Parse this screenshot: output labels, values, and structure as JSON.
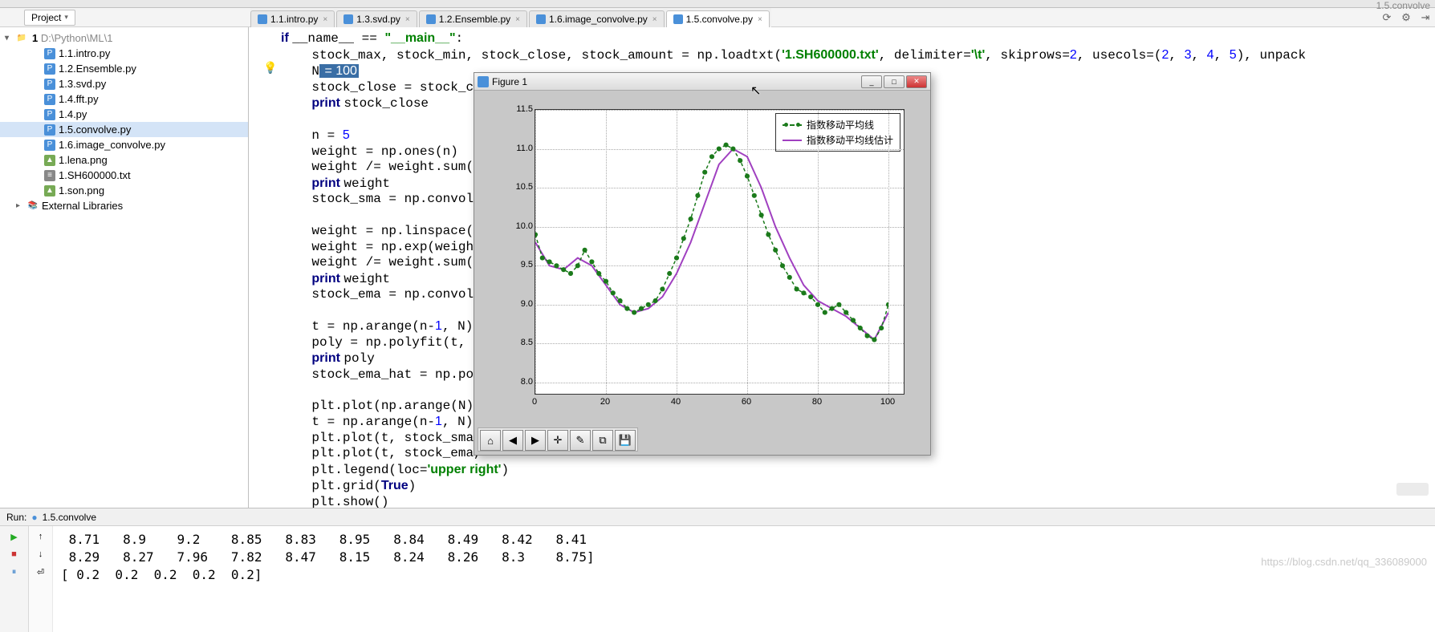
{
  "title_bar_hint": "1.5.convolve.py",
  "top_right_label": "1.5.convolve",
  "project_dropdown": "Project",
  "tabs": [
    {
      "label": "1.1.intro.py",
      "active": false
    },
    {
      "label": "1.3.svd.py",
      "active": false
    },
    {
      "label": "1.2.Ensemble.py",
      "active": false
    },
    {
      "label": "1.6.image_convolve.py",
      "active": false
    },
    {
      "label": "1.5.convolve.py",
      "active": true
    }
  ],
  "tree": {
    "root": "D:\\Python\\ML\\1",
    "children": [
      {
        "name": "1.1.intro.py",
        "type": "py"
      },
      {
        "name": "1.2.Ensemble.py",
        "type": "py"
      },
      {
        "name": "1.3.svd.py",
        "type": "py"
      },
      {
        "name": "1.4.fft.py",
        "type": "py"
      },
      {
        "name": "1.4.py",
        "type": "py"
      },
      {
        "name": "1.5.convolve.py",
        "type": "py",
        "selected": true
      },
      {
        "name": "1.6.image_convolve.py",
        "type": "py"
      },
      {
        "name": "1.lena.png",
        "type": "img"
      },
      {
        "name": "1.SH600000.txt",
        "type": "txt"
      },
      {
        "name": "1.son.png",
        "type": "img"
      }
    ],
    "libs": "External Libraries"
  },
  "code_lines": [
    {
      "indent": 1,
      "segs": [
        {
          "t": "if ",
          "c": "kw"
        },
        {
          "t": "__name__ == "
        },
        {
          "t": "\"__main__\"",
          "c": "str"
        },
        {
          "t": ":"
        }
      ]
    },
    {
      "indent": 2,
      "segs": [
        {
          "t": "stock_max, stock_min, stock_close, stock_amount = np.loadtxt("
        },
        {
          "t": "'1.SH600000.txt'",
          "c": "str"
        },
        {
          "t": ", delimiter="
        },
        {
          "t": "'\\t'",
          "c": "str"
        },
        {
          "t": ", skiprows="
        },
        {
          "t": "2",
          "c": "num"
        },
        {
          "t": ", usecols=("
        },
        {
          "t": "2",
          "c": "num"
        },
        {
          "t": ", "
        },
        {
          "t": "3",
          "c": "num"
        },
        {
          "t": ", "
        },
        {
          "t": "4",
          "c": "num"
        },
        {
          "t": ", "
        },
        {
          "t": "5",
          "c": "num"
        },
        {
          "t": "), unpack"
        }
      ]
    },
    {
      "indent": 2,
      "segs": [
        {
          "t": "N"
        },
        {
          "t": " = 100",
          "c": "sel"
        }
      ]
    },
    {
      "indent": 2,
      "segs": [
        {
          "t": "stock_close = stock_clo"
        }
      ]
    },
    {
      "indent": 2,
      "segs": [
        {
          "t": "print ",
          "c": "kw"
        },
        {
          "t": "stock_close"
        }
      ]
    },
    {
      "indent": 2,
      "segs": [
        {
          "t": ""
        }
      ]
    },
    {
      "indent": 2,
      "segs": [
        {
          "t": "n = "
        },
        {
          "t": "5",
          "c": "num"
        }
      ]
    },
    {
      "indent": 2,
      "segs": [
        {
          "t": "weight = np.ones(n)"
        }
      ]
    },
    {
      "indent": 2,
      "segs": [
        {
          "t": "weight /= weight.sum()"
        }
      ]
    },
    {
      "indent": 2,
      "segs": [
        {
          "t": "print ",
          "c": "kw"
        },
        {
          "t": "weight"
        }
      ]
    },
    {
      "indent": 2,
      "segs": [
        {
          "t": "stock_sma = np.convolve"
        }
      ]
    },
    {
      "indent": 2,
      "segs": [
        {
          "t": ""
        }
      ]
    },
    {
      "indent": 2,
      "segs": [
        {
          "t": "weight = np.linspace("
        },
        {
          "t": "1",
          "c": "num"
        },
        {
          "t": ","
        }
      ]
    },
    {
      "indent": 2,
      "segs": [
        {
          "t": "weight = np.exp(weight)"
        }
      ]
    },
    {
      "indent": 2,
      "segs": [
        {
          "t": "weight /= weight.sum()"
        }
      ]
    },
    {
      "indent": 2,
      "segs": [
        {
          "t": "print ",
          "c": "kw"
        },
        {
          "t": "weight"
        }
      ]
    },
    {
      "indent": 2,
      "segs": [
        {
          "t": "stock_ema = np.convolve"
        }
      ]
    },
    {
      "indent": 2,
      "segs": [
        {
          "t": ""
        }
      ]
    },
    {
      "indent": 2,
      "segs": [
        {
          "t": "t = np.arange(n-"
        },
        {
          "t": "1",
          "c": "num"
        },
        {
          "t": ", N)"
        }
      ]
    },
    {
      "indent": 2,
      "segs": [
        {
          "t": "poly = np.polyfit(t, st"
        }
      ]
    },
    {
      "indent": 2,
      "segs": [
        {
          "t": "print ",
          "c": "kw"
        },
        {
          "t": "poly"
        }
      ]
    },
    {
      "indent": 2,
      "segs": [
        {
          "t": "stock_ema_hat = np.poly"
        }
      ]
    },
    {
      "indent": 2,
      "segs": [
        {
          "t": ""
        }
      ]
    },
    {
      "indent": 2,
      "segs": [
        {
          "t": "plt.plot(np.arange(N),"
        }
      ]
    },
    {
      "indent": 2,
      "segs": [
        {
          "t": "t = np.arange(n-"
        },
        {
          "t": "1",
          "c": "num"
        },
        {
          "t": ", N)"
        }
      ]
    },
    {
      "indent": 2,
      "segs": [
        {
          "t": "plt.plot(t, stock_sma,"
        }
      ]
    },
    {
      "indent": 2,
      "segs": [
        {
          "t": "plt.plot(t, stock_ema,"
        }
      ]
    },
    {
      "indent": 2,
      "segs": [
        {
          "t": "plt.legend(loc="
        },
        {
          "t": "'upper right'",
          "c": "str"
        },
        {
          "t": ")"
        }
      ]
    },
    {
      "indent": 2,
      "segs": [
        {
          "t": "plt.grid("
        },
        {
          "t": "True",
          "c": "kw"
        },
        {
          "t": ")"
        }
      ]
    },
    {
      "indent": 2,
      "segs": [
        {
          "t": "plt.show()"
        }
      ]
    }
  ],
  "figure": {
    "title": "Figure 1",
    "chart": {
      "type": "line",
      "xlim": [
        0,
        100
      ],
      "xtick_step": 20,
      "ylim": [
        8.0,
        11.5
      ],
      "ytick_step": 0.5,
      "background_color": "#ffffff",
      "grid_color": "#bbbbbb",
      "series_ema": {
        "color": "#1b7a1b",
        "style": "dashed-dot",
        "marker": "o",
        "marker_size": 4,
        "x": [
          0,
          2,
          4,
          6,
          8,
          10,
          12,
          14,
          16,
          18,
          20,
          22,
          24,
          26,
          28,
          30,
          32,
          34,
          36,
          38,
          40,
          42,
          44,
          46,
          48,
          50,
          52,
          54,
          56,
          58,
          60,
          62,
          64,
          66,
          68,
          70,
          72,
          74,
          76,
          78,
          80,
          82,
          84,
          86,
          88,
          90,
          92,
          94,
          96,
          98,
          100
        ],
        "y": [
          9.9,
          9.6,
          9.55,
          9.5,
          9.45,
          9.4,
          9.5,
          9.7,
          9.55,
          9.4,
          9.3,
          9.15,
          9.05,
          8.95,
          8.9,
          8.95,
          9.0,
          9.05,
          9.2,
          9.4,
          9.6,
          9.85,
          10.1,
          10.4,
          10.7,
          10.9,
          11.0,
          11.05,
          11.0,
          10.85,
          10.65,
          10.4,
          10.15,
          9.9,
          9.7,
          9.5,
          9.35,
          9.2,
          9.15,
          9.1,
          9.0,
          8.9,
          8.95,
          9.0,
          8.9,
          8.8,
          8.7,
          8.6,
          8.55,
          8.7,
          9.0
        ]
      },
      "series_hat": {
        "color": "#a040c0",
        "style": "solid",
        "line_width": 2,
        "x": [
          0,
          4,
          8,
          12,
          16,
          20,
          24,
          28,
          32,
          36,
          40,
          44,
          48,
          52,
          56,
          60,
          64,
          68,
          72,
          76,
          80,
          84,
          88,
          92,
          96,
          100
        ],
        "y": [
          9.8,
          9.5,
          9.45,
          9.6,
          9.5,
          9.25,
          9.0,
          8.9,
          8.95,
          9.1,
          9.4,
          9.8,
          10.3,
          10.8,
          11.0,
          10.9,
          10.5,
          10.0,
          9.6,
          9.25,
          9.05,
          8.95,
          8.85,
          8.7,
          8.55,
          8.9
        ]
      },
      "legend": [
        {
          "label": "指数移动平均线",
          "color": "#1b7a1b",
          "style": "dashed"
        },
        {
          "label": "指数移动平均线估计",
          "color": "#a040c0",
          "style": "solid"
        }
      ]
    },
    "toolbar_icons": [
      "⌂",
      "◀",
      "▶",
      "✛",
      "✎",
      "⧉",
      "💾"
    ]
  },
  "run": {
    "header_label": "Run:",
    "header_config": "1.5.convolve",
    "rows": [
      " 8.71   8.9    9.2    8.85   8.83   8.95   8.84   8.49   8.42   8.41",
      " 8.29   8.27   7.96   7.82   8.47   8.15   8.24   8.26   8.3    8.75]",
      "[ 0.2  0.2  0.2  0.2  0.2]"
    ]
  },
  "watermark": "https://blog.csdn.net/qq_336089000"
}
